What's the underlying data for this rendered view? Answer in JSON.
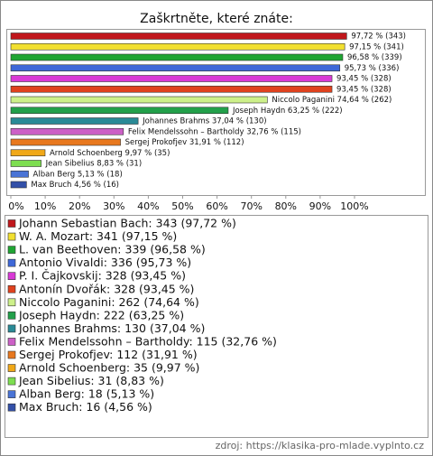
{
  "chart_data": {
    "type": "bar",
    "orientation": "horizontal",
    "title": "Zaškrtněte, které znáte:",
    "categories": [
      "Johann Sebastian Bach",
      "W. A. Mozart",
      "L. van Beethoven",
      "Antonio Vivaldi",
      "P. I. Čajkovskij",
      "Antonín Dvořák",
      "Niccolo Paganini",
      "Joseph Haydn",
      "Johannes Brahms",
      "Felix Mendelssohn – Bartholdy",
      "Sergej Prokofjev",
      "Arnold Schoenberg",
      "Jean Sibelius",
      "Alban Berg",
      "Max Bruch"
    ],
    "values": [
      97.72,
      97.15,
      96.58,
      95.73,
      93.45,
      93.45,
      74.64,
      63.25,
      37.04,
      32.76,
      31.91,
      9.97,
      8.83,
      5.13,
      4.56
    ],
    "value_labels": [
      "97,72 % (343)",
      "97,15 % (341)",
      "96,58 % (339)",
      "95,73 % (336)",
      "93,45 % (328)",
      "93,45 % (328)",
      "Niccolo Paganini 74,64 % (262)",
      "Joseph Haydn 63,25 % (222)",
      "Johannes Brahms 37,04 % (130)",
      "Felix Mendelssohn – Bartholdy 32,76 % (115)",
      "Sergej Prokofjev 31,91 % (112)",
      "Arnold Schoenberg 9,97 % (35)",
      "Jean Sibelius 8,83 % (31)",
      "Alban Berg 5,13 % (18)",
      "Max Bruch 4,56 % (16)"
    ],
    "legend": [
      "Johann Sebastian Bach: 343 (97,72 %)",
      "W. A. Mozart: 341 (97,15 %)",
      "L. van Beethoven: 339 (96,58 %)",
      "Antonio Vivaldi: 336 (95,73 %)",
      "P. I. Čajkovskij: 328 (93,45 %)",
      "Antonín Dvořák: 328 (93,45 %)",
      "Niccolo Paganini: 262 (74,64 %)",
      "Joseph Haydn: 222 (63,25 %)",
      "Johannes Brahms: 130 (37,04 %)",
      "Felix Mendelssohn – Bartholdy: 115 (32,76 %)",
      "Sergej Prokofjev: 112 (31,91 %)",
      "Arnold Schoenberg: 35 (9,97 %)",
      "Jean Sibelius: 31 (8,83 %)",
      "Alban Berg: 18 (5,13 %)",
      "Max Bruch: 16 (4,56 %)"
    ],
    "colors": [
      "#c0171c",
      "#f2e030",
      "#1fa533",
      "#3f68d8",
      "#d93ad6",
      "#e0421e",
      "#cdf08a",
      "#22a04a",
      "#2a8a96",
      "#cc60c6",
      "#e8781e",
      "#f0a818",
      "#7dde50",
      "#4a74d6",
      "#3350a8"
    ],
    "xlim": [
      0,
      100
    ],
    "xticks": [
      {
        "value": 0,
        "label": "0%"
      },
      {
        "value": 10,
        "label": "10%"
      },
      {
        "value": 20,
        "label": "20%"
      },
      {
        "value": 30,
        "label": "30%"
      },
      {
        "value": 40,
        "label": "40%"
      },
      {
        "value": 50,
        "label": "50%"
      },
      {
        "value": 60,
        "label": "60%"
      },
      {
        "value": 70,
        "label": "70%"
      },
      {
        "value": 80,
        "label": "80%"
      },
      {
        "value": 90,
        "label": "90%"
      },
      {
        "value": 100,
        "label": "100%"
      }
    ],
    "grid": false,
    "source": "zdroj: https://klasika-pro-mlade.vyplnto.cz"
  }
}
